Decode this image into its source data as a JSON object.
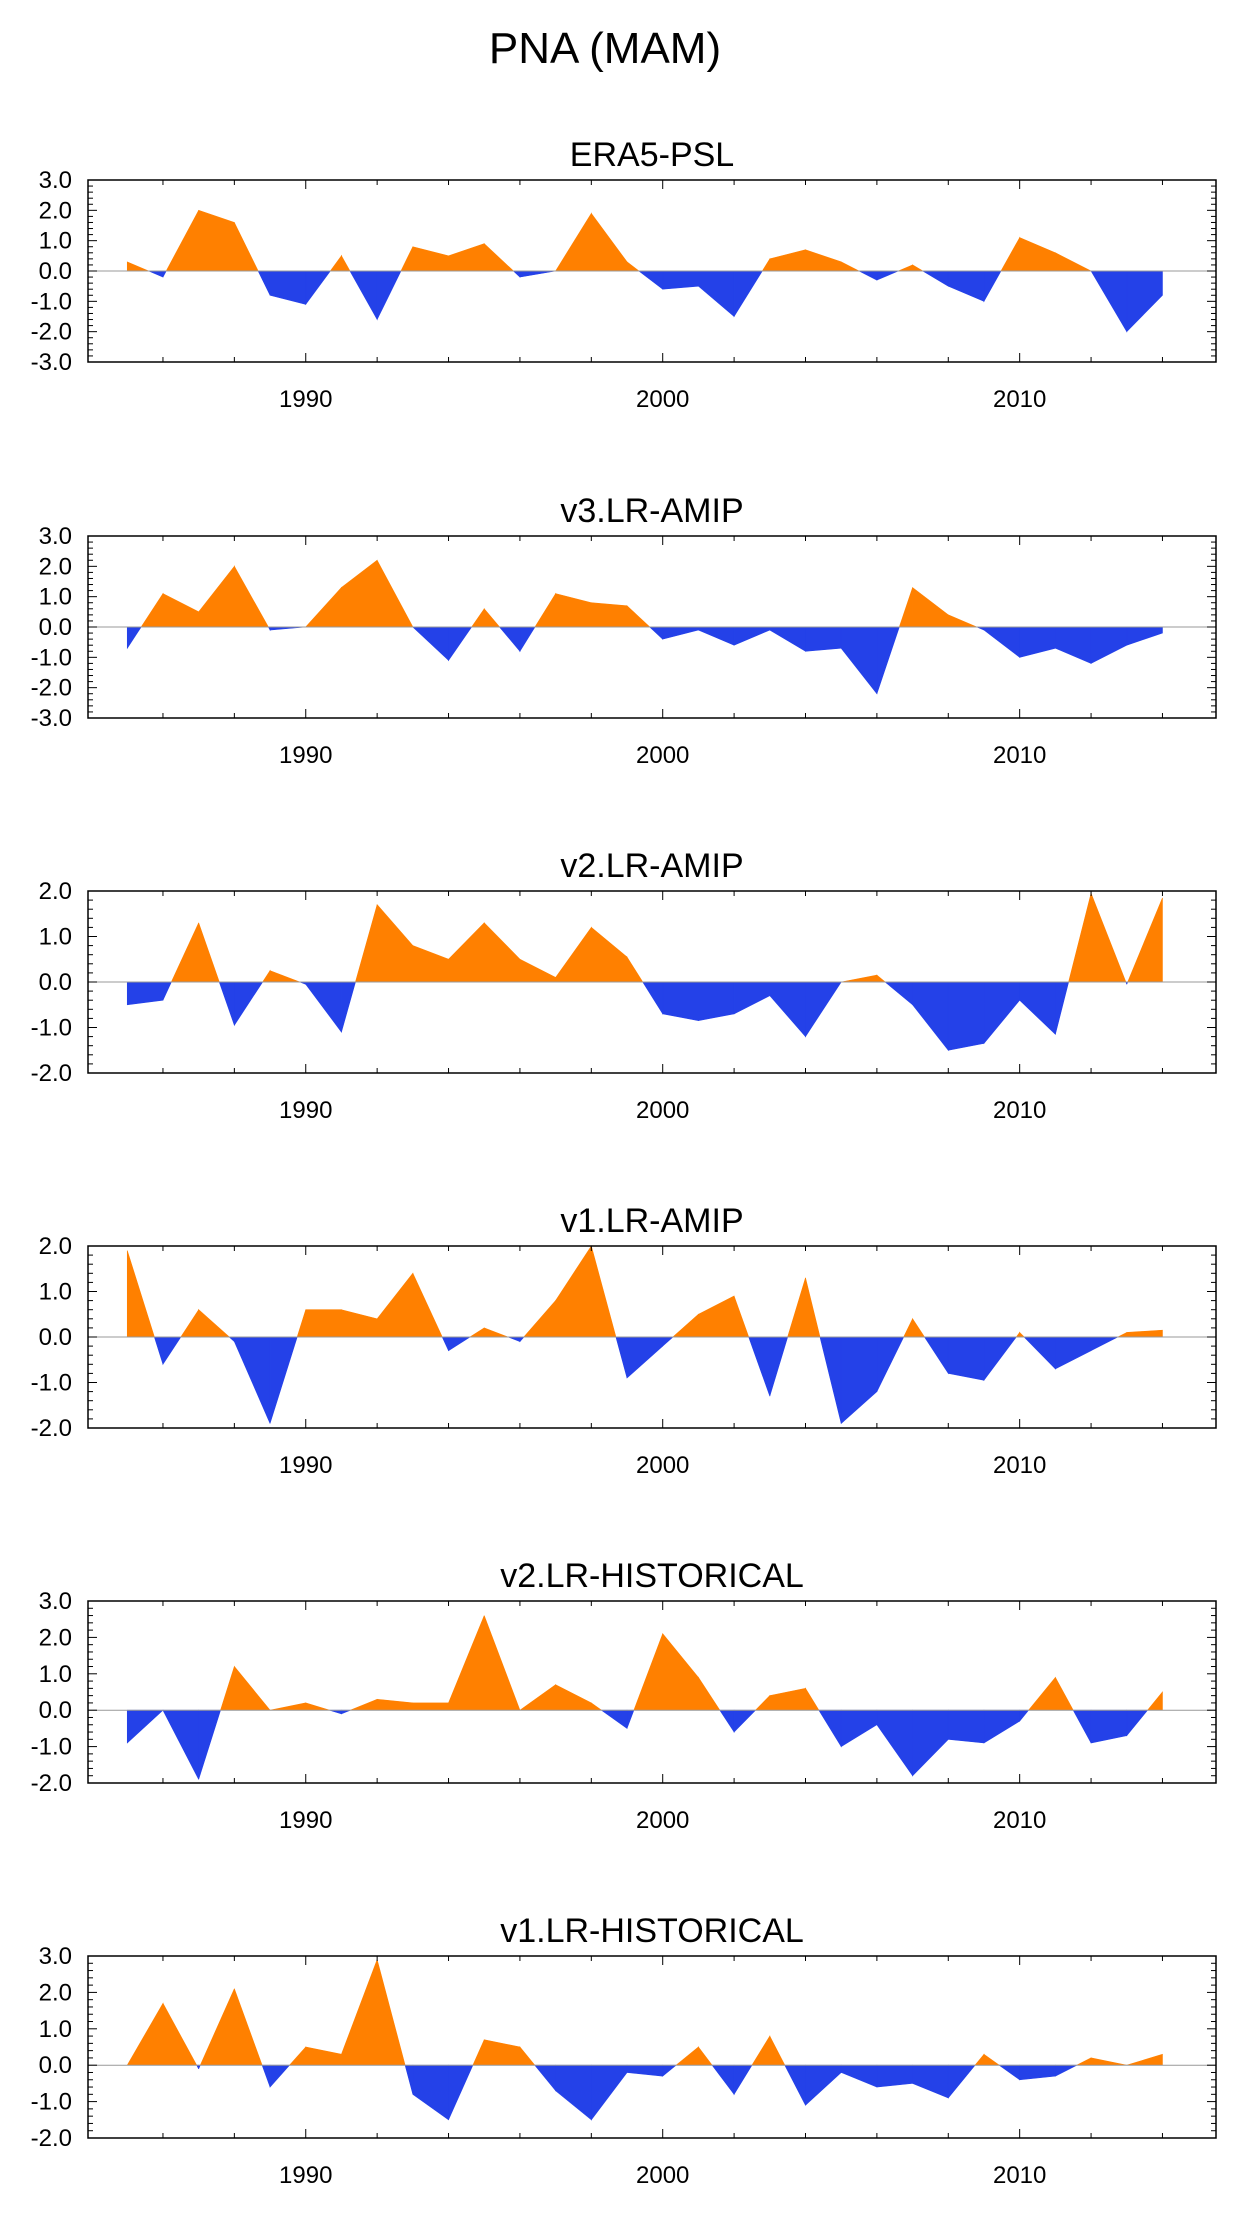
{
  "title": "PNA (MAM)",
  "colors": {
    "positive": "#ff8000",
    "negative": "#2441e8",
    "axis": "#000000",
    "zero_line": "#999999"
  },
  "xlim": [
    1983.9,
    2015.5
  ],
  "xticks": [
    1990,
    2000,
    2010
  ],
  "chart_data": [
    {
      "type": "area",
      "title": "ERA5-PSL",
      "ylim": [
        -3,
        3
      ],
      "yticks": [
        -3,
        -2,
        -1,
        0,
        1,
        2,
        3
      ],
      "ytick_labels": [
        "-3.0",
        "-2.0",
        "-1.0",
        "0.0",
        "1.0",
        "2.0",
        "3.0"
      ],
      "x": [
        1985,
        1986,
        1987,
        1988,
        1989,
        1990,
        1991,
        1992,
        1993,
        1994,
        1995,
        1996,
        1997,
        1998,
        1999,
        2000,
        2001,
        2002,
        2003,
        2004,
        2005,
        2006,
        2007,
        2008,
        2009,
        2010,
        2011,
        2012,
        2013,
        2014
      ],
      "values": [
        0.3,
        -0.2,
        2.0,
        1.6,
        -0.8,
        -1.1,
        0.5,
        -1.6,
        0.8,
        0.5,
        0.9,
        -0.2,
        0.0,
        1.9,
        0.3,
        -0.6,
        -0.5,
        -1.5,
        0.4,
        0.7,
        0.3,
        -0.3,
        0.2,
        -0.5,
        -1.0,
        1.1,
        0.6,
        0.0,
        -2.0,
        -0.8
      ]
    },
    {
      "type": "area",
      "title": "v3.LR-AMIP",
      "ylim": [
        -3,
        3
      ],
      "yticks": [
        -3,
        -2,
        -1,
        0,
        1,
        2,
        3
      ],
      "ytick_labels": [
        "-3.0",
        "-2.0",
        "-1.0",
        "0.0",
        "1.0",
        "2.0",
        "3.0"
      ],
      "x": [
        1985,
        1986,
        1987,
        1988,
        1989,
        1990,
        1991,
        1992,
        1993,
        1994,
        1995,
        1996,
        1997,
        1998,
        1999,
        2000,
        2001,
        2002,
        2003,
        2004,
        2005,
        2006,
        2007,
        2008,
        2009,
        2010,
        2011,
        2012,
        2013,
        2014
      ],
      "values": [
        -0.7,
        1.1,
        0.5,
        2.0,
        -0.1,
        0.0,
        1.3,
        2.2,
        0.0,
        -1.1,
        0.6,
        -0.8,
        1.1,
        0.8,
        0.7,
        -0.4,
        -0.1,
        -0.6,
        -0.1,
        -0.8,
        -0.7,
        -2.2,
        1.3,
        0.4,
        -0.1,
        -1.0,
        -0.7,
        -1.2,
        -0.6,
        -0.2
      ]
    },
    {
      "type": "area",
      "title": "v2.LR-AMIP",
      "ylim": [
        -2,
        2
      ],
      "yticks": [
        -2,
        -1,
        0,
        1,
        2
      ],
      "ytick_labels": [
        "-2.0",
        "-1.0",
        "0.0",
        "1.0",
        "2.0"
      ],
      "x": [
        1985,
        1986,
        1987,
        1988,
        1989,
        1990,
        1991,
        1992,
        1993,
        1994,
        1995,
        1996,
        1997,
        1998,
        1999,
        2000,
        2001,
        2002,
        2003,
        2004,
        2005,
        2006,
        2007,
        2008,
        2009,
        2010,
        2011,
        2012,
        2013,
        2014
      ],
      "values": [
        -0.5,
        -0.4,
        1.3,
        -0.95,
        0.25,
        -0.05,
        -1.1,
        1.7,
        0.8,
        0.5,
        1.3,
        0.5,
        0.1,
        1.2,
        0.55,
        -0.7,
        -0.85,
        -0.7,
        -0.3,
        -1.2,
        0.0,
        0.15,
        -0.5,
        -1.5,
        -1.35,
        -0.4,
        -1.15,
        1.95,
        -0.05,
        1.85
      ]
    },
    {
      "type": "area",
      "title": "v1.LR-AMIP",
      "ylim": [
        -2,
        2
      ],
      "yticks": [
        -2,
        -1,
        0,
        1,
        2
      ],
      "ytick_labels": [
        "-2.0",
        "-1.0",
        "0.0",
        "1.0",
        "2.0"
      ],
      "x": [
        1985,
        1986,
        1987,
        1988,
        1989,
        1990,
        1991,
        1992,
        1993,
        1994,
        1995,
        1996,
        1997,
        1998,
        1999,
        2000,
        2001,
        2002,
        2003,
        2004,
        2005,
        2006,
        2007,
        2008,
        2009,
        2010,
        2011,
        2012,
        2013,
        2014
      ],
      "values": [
        1.9,
        -0.6,
        0.6,
        -0.1,
        -1.9,
        0.6,
        0.6,
        0.4,
        1.4,
        -0.3,
        0.2,
        -0.1,
        0.8,
        2.0,
        -0.9,
        -0.2,
        0.5,
        0.9,
        -1.3,
        1.3,
        -1.9,
        -1.2,
        0.4,
        -0.8,
        -0.95,
        0.1,
        -0.7,
        -0.3,
        0.1,
        0.15
      ]
    },
    {
      "type": "area",
      "title": "v2.LR-HISTORICAL",
      "ylim": [
        -2,
        3
      ],
      "yticks": [
        -2,
        -1,
        0,
        1,
        2,
        3
      ],
      "ytick_labels": [
        "-2.0",
        "-1.0",
        "0.0",
        "1.0",
        "2.0",
        "3.0"
      ],
      "x": [
        1985,
        1986,
        1987,
        1988,
        1989,
        1990,
        1991,
        1992,
        1993,
        1994,
        1995,
        1996,
        1997,
        1998,
        1999,
        2000,
        2001,
        2002,
        2003,
        2004,
        2005,
        2006,
        2007,
        2008,
        2009,
        2010,
        2011,
        2012,
        2013,
        2014
      ],
      "values": [
        -0.9,
        0.0,
        -1.9,
        1.2,
        0.0,
        0.2,
        -0.1,
        0.3,
        0.2,
        0.2,
        2.6,
        0.0,
        0.7,
        0.2,
        -0.5,
        2.1,
        0.9,
        -0.6,
        0.4,
        0.6,
        -1.0,
        -0.4,
        -1.8,
        -0.8,
        -0.9,
        -0.3,
        0.9,
        -0.9,
        -0.7,
        0.5
      ]
    },
    {
      "type": "area",
      "title": "v1.LR-HISTORICAL",
      "ylim": [
        -2,
        3
      ],
      "yticks": [
        -2,
        -1,
        0,
        1,
        2,
        3
      ],
      "ytick_labels": [
        "-2.0",
        "-1.0",
        "0.0",
        "1.0",
        "2.0",
        "3.0"
      ],
      "x": [
        1985,
        1986,
        1987,
        1988,
        1989,
        1990,
        1991,
        1992,
        1993,
        1994,
        1995,
        1996,
        1997,
        1998,
        1999,
        2000,
        2001,
        2002,
        2003,
        2004,
        2005,
        2006,
        2007,
        2008,
        2009,
        2010,
        2011,
        2012,
        2013,
        2014
      ],
      "values": [
        0.0,
        1.7,
        -0.1,
        2.1,
        -0.6,
        0.5,
        0.3,
        2.9,
        -0.8,
        -1.5,
        0.7,
        0.5,
        -0.7,
        -1.5,
        -0.2,
        -0.3,
        0.5,
        -0.8,
        0.8,
        -1.1,
        -0.2,
        -0.6,
        -0.5,
        -0.9,
        0.3,
        -0.4,
        -0.3,
        0.2,
        0.0,
        0.3
      ]
    }
  ]
}
